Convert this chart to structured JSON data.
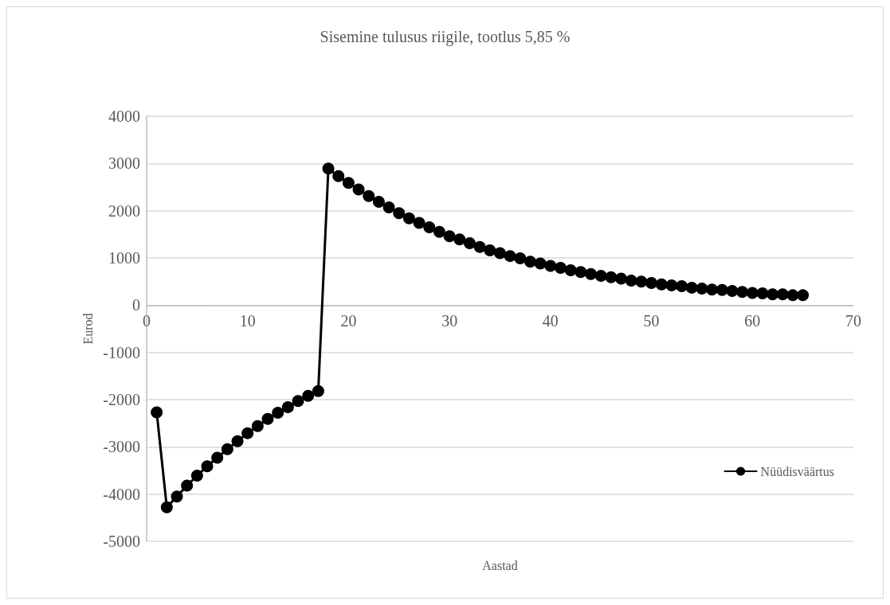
{
  "chart_data": {
    "type": "line",
    "title": "Sisemine tulusus riigile, tootlus 5,85 %",
    "xlabel": "Aastad",
    "ylabel": "Eurod",
    "x": [
      1,
      2,
      3,
      4,
      5,
      6,
      7,
      8,
      9,
      10,
      11,
      12,
      13,
      14,
      15,
      16,
      17,
      18,
      19,
      20,
      21,
      22,
      23,
      24,
      25,
      26,
      27,
      28,
      29,
      30,
      31,
      32,
      33,
      34,
      35,
      36,
      37,
      38,
      39,
      40,
      41,
      42,
      43,
      44,
      45,
      46,
      47,
      48,
      49,
      50,
      51,
      52,
      53,
      54,
      55,
      56,
      57,
      58,
      59,
      60,
      61,
      62,
      63,
      64,
      65
    ],
    "series": [
      {
        "name": "Nüüdisväärtus",
        "color": "#000000",
        "values": [
          -2270,
          -4280,
          -4050,
          -3820,
          -3610,
          -3410,
          -3230,
          -3050,
          -2880,
          -2710,
          -2560,
          -2410,
          -2280,
          -2160,
          -2030,
          -1920,
          -1820,
          2890,
          2730,
          2590,
          2450,
          2310,
          2190,
          2070,
          1950,
          1840,
          1740,
          1650,
          1550,
          1460,
          1390,
          1310,
          1230,
          1160,
          1100,
          1040,
          990,
          920,
          880,
          830,
          790,
          740,
          700,
          660,
          620,
          590,
          560,
          520,
          500,
          470,
          440,
          420,
          400,
          370,
          350,
          330,
          320,
          300,
          280,
          260,
          250,
          230,
          230,
          210,
          210
        ]
      }
    ],
    "xlim": [
      0,
      70
    ],
    "xticks": [
      0,
      10,
      20,
      30,
      40,
      50,
      60,
      70
    ],
    "ylim": [
      -5000,
      4000
    ],
    "yticks": [
      -5000,
      -4000,
      -3000,
      -2000,
      -1000,
      0,
      1000,
      2000,
      3000,
      4000
    ],
    "grid": "y",
    "legend": "bottom right",
    "marker": "circle",
    "line_style": "solid"
  }
}
